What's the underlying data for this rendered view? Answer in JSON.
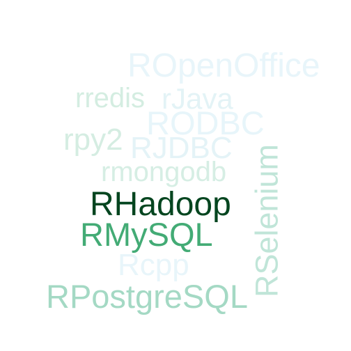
{
  "words": [
    {
      "id": "ropenoffice",
      "text": "ROpenOffice",
      "color": "#e8f5fa"
    },
    {
      "id": "rredis",
      "text": "rredis",
      "color": "#d4ede1"
    },
    {
      "id": "rjava",
      "text": "rJava",
      "color": "#e3f3f6"
    },
    {
      "id": "rodbc",
      "text": "RODBC",
      "color": "#e7f5fa"
    },
    {
      "id": "rpy2",
      "text": "rpy2",
      "color": "#d5ede2"
    },
    {
      "id": "rjdbc",
      "text": "RJDBC",
      "color": "#e4f3f7"
    },
    {
      "id": "rmongodb",
      "text": "rmongodb",
      "color": "#d6eee4"
    },
    {
      "id": "rhadoop",
      "text": "RHadoop",
      "color": "#03451f"
    },
    {
      "id": "rmysql",
      "text": "RMySQL",
      "color": "#43ab75"
    },
    {
      "id": "rcpp",
      "text": "Rcpp",
      "color": "#e8f5fa"
    },
    {
      "id": "rpostgresql",
      "text": "RPostgreSQL",
      "color": "#a4d9c4"
    },
    {
      "id": "rselenium",
      "text": "RSelenium",
      "color": "#c0e5d8"
    }
  ]
}
